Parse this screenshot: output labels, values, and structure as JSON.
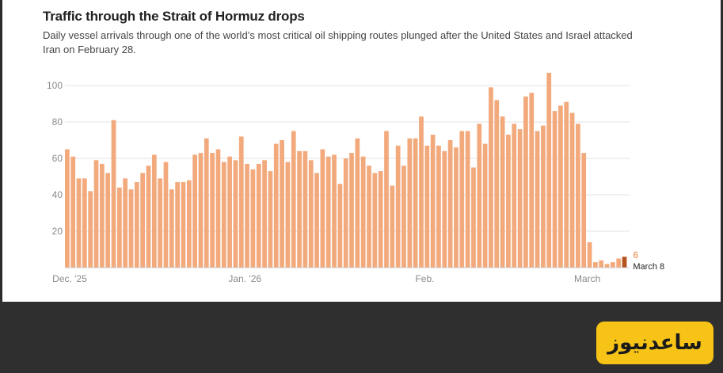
{
  "chart_data": {
    "type": "bar",
    "title": "Traffic through the Strait of Hormuz drops",
    "subtitle": "Daily vessel arrivals through one of the world’s most critical oil shipping routes plunged after the United States and Israel attacked Iran on February 28.",
    "xlabel": "",
    "ylabel": "",
    "ylim": [
      0,
      110
    ],
    "yticks": [
      20,
      40,
      60,
      80,
      100
    ],
    "x_tick_labels": [
      {
        "label": "Dec. '25",
        "index": 0
      },
      {
        "label": "Jan. '26",
        "index": 31
      },
      {
        "label": "Feb.",
        "index": 62
      },
      {
        "label": "March",
        "index": 90
      }
    ],
    "values": [
      65,
      61,
      49,
      49,
      42,
      59,
      57,
      52,
      81,
      44,
      49,
      43,
      47,
      52,
      56,
      62,
      49,
      58,
      43,
      47,
      47,
      48,
      62,
      63,
      71,
      63,
      65,
      58,
      61,
      59,
      72,
      57,
      54,
      57,
      59,
      53,
      68,
      70,
      58,
      75,
      64,
      64,
      59,
      52,
      65,
      61,
      62,
      46,
      60,
      63,
      71,
      61,
      56,
      52,
      53,
      75,
      45,
      67,
      56,
      71,
      71,
      83,
      67,
      73,
      67,
      64,
      70,
      66,
      75,
      75,
      55,
      79,
      68,
      99,
      92,
      83,
      73,
      79,
      76,
      94,
      96,
      75,
      78,
      107,
      86,
      89,
      91,
      85,
      79,
      63,
      14,
      3,
      4,
      2,
      3,
      5,
      6
    ],
    "series_color": "#f2a97c",
    "highlight_color": "#b5541c",
    "highlight_index": 96,
    "annotation": {
      "value": "6",
      "label": "March 8"
    }
  }
}
